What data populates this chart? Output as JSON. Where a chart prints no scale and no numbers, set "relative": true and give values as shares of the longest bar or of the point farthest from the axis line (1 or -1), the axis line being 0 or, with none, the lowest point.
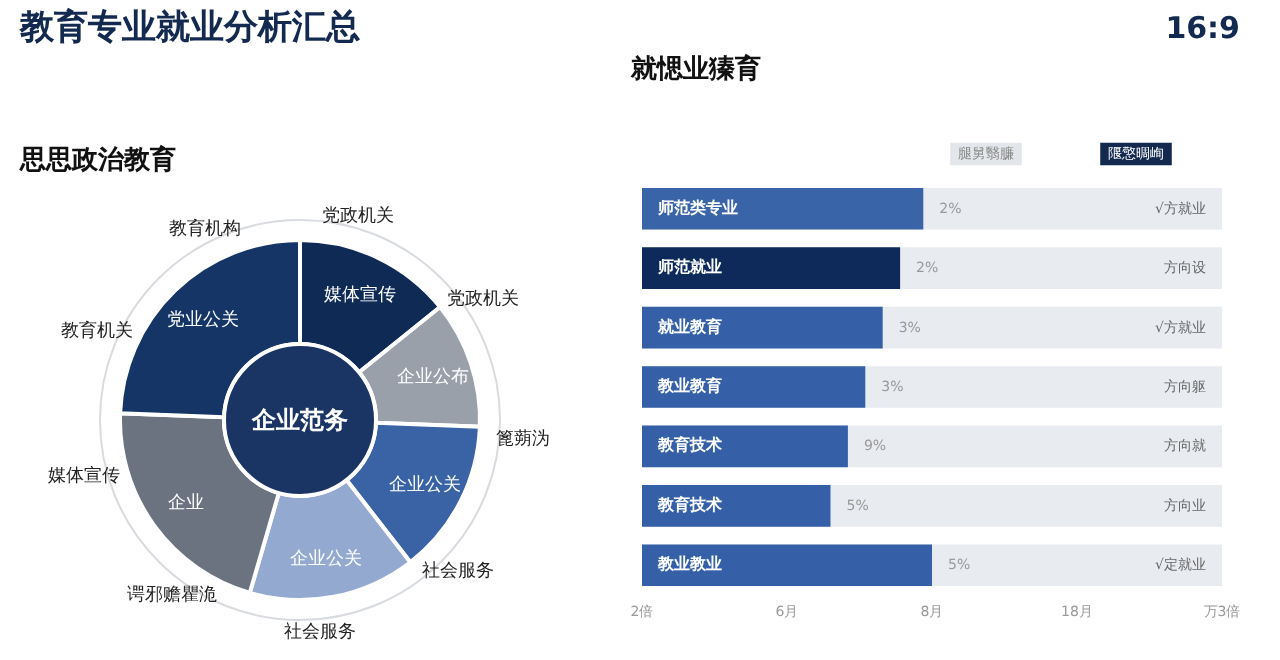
{
  "chart_data": [
    {
      "type": "donut",
      "title": "教育专业就业分析汇总",
      "subtitle": "思思政治教育",
      "categories": [
        "媒体宣传",
        "企业公布",
        "企业公关",
        "企业公关",
        "企业",
        "党业公关"
      ],
      "values": [
        14.2,
        11.4,
        13.9,
        15.0,
        21.1,
        24.4
      ],
      "colors": [
        "#0f2a55",
        "#9aa0aa",
        "#3a63a6",
        "#93a9cf",
        "#6b7280",
        "#143566"
      ],
      "annotations": [
        "16:9",
        "企业范务",
        "党政机关",
        "党政机关",
        "篦蒴沩",
        "社会服务",
        "社会服务",
        "谔邪赡瞿洈",
        "媒体宣传",
        "教育机关",
        "教育机构"
      ]
    },
    {
      "type": "bar",
      "orientation": "horizontal",
      "relative": true,
      "title": "就愢业獉育",
      "categories": [
        "师范类专业",
        "师范就业",
        "就业教育",
        "教业教育",
        "教育技术",
        "教育技术",
        "教业教业"
      ],
      "values": [
        0.97,
        0.89,
        0.83,
        0.77,
        0.71,
        0.65,
        1
      ],
      "colors": [
        "#3a64a8",
        "#0d2a5a",
        "#3560a8",
        "#3560a8",
        "#3560a8",
        "#3560a8",
        "#3560a8"
      ],
      "annotations": [
        "腿舅翳臁",
        "隁憼晭峋",
        "√方就业",
        "方向设",
        "√方就业",
        "方向躯",
        "方向就",
        "方向业",
        "√定就业",
        "2倍",
        "6月",
        "8月",
        "18月",
        "万3倍",
        "2%",
        "2%",
        "3%",
        "3%",
        "9%",
        "5%",
        "5%"
      ]
    }
  ]
}
